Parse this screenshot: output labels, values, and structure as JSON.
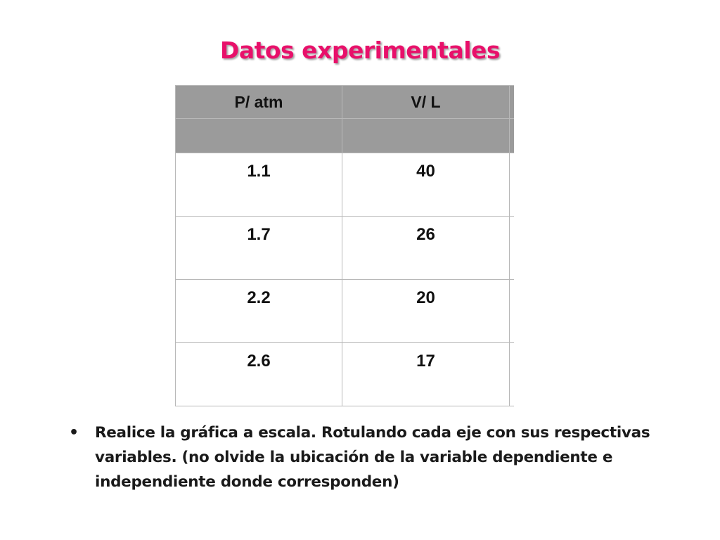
{
  "slide": {
    "title": "Datos experimentales"
  },
  "table": {
    "headers": [
      "P/ atm",
      "V/ L",
      ""
    ],
    "rows": [
      [
        "1.1",
        "40",
        ""
      ],
      [
        "1.7",
        "26",
        ""
      ],
      [
        "2.2",
        "20",
        ""
      ],
      [
        "2.6",
        "17",
        ""
      ]
    ],
    "colors": {
      "header_background": "#9b9b9b",
      "border": "#b8b8b8"
    }
  },
  "bullets": [
    {
      "bullet_char": "•",
      "text": "Realice la gráfica a escala. Rotulando cada eje con sus respectivas variables. (no olvide la ubicación de la variable dependiente e independiente donde corresponden)"
    }
  ],
  "colors": {
    "title": "#e8106a"
  }
}
